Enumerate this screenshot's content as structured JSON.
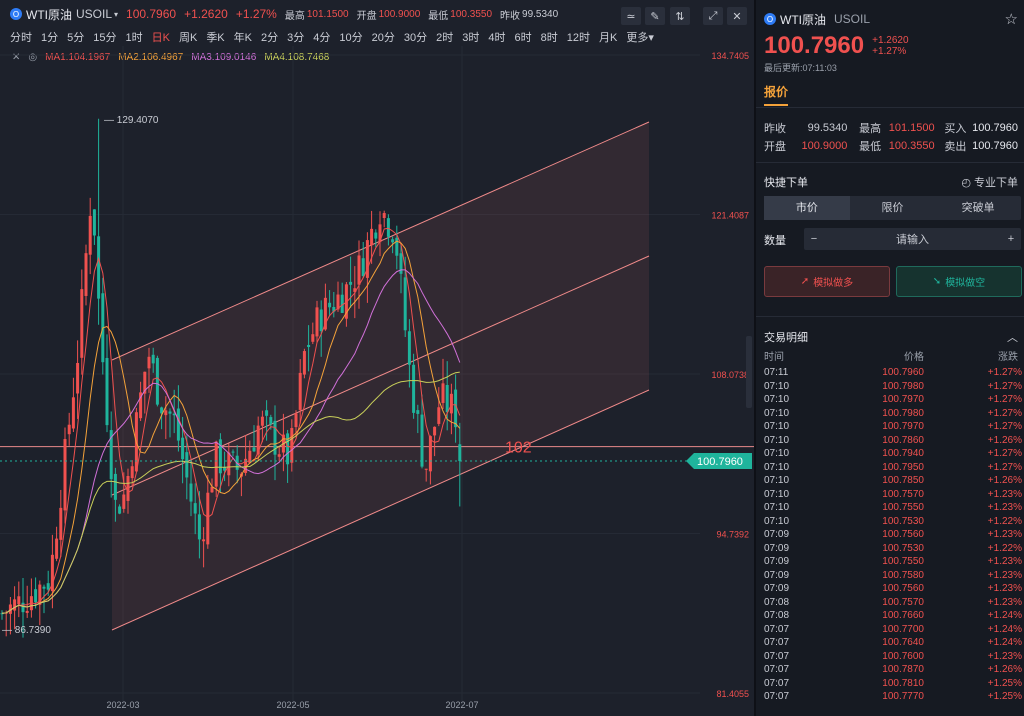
{
  "header": {
    "logo_glyph": "O",
    "symbol_name": "WTI原油",
    "symbol_code": "USOIL",
    "caret": "▾",
    "price": "100.7960",
    "change": "+1.2620",
    "change_pct": "+1.27%",
    "stats": [
      {
        "label": "最高",
        "value": "101.1500"
      },
      {
        "label": "开盘",
        "value": "100.9000"
      },
      {
        "label": "最低",
        "value": "100.3550"
      },
      {
        "label": "昨收",
        "value": "99.5340"
      }
    ],
    "tools": [
      "≃",
      "✎",
      "⇅",
      "⤢",
      "✕"
    ],
    "tool_names": [
      "indicator-icon",
      "draw-icon",
      "compare-icon",
      "fullscreen-icon",
      "close-icon"
    ]
  },
  "intervals": [
    "分时",
    "1分",
    "5分",
    "15分",
    "1时",
    "日K",
    "周K",
    "季K",
    "年K",
    "2分",
    "3分",
    "4分",
    "10分",
    "20分",
    "30分",
    "2时",
    "3时",
    "4时",
    "6时",
    "8时",
    "12时",
    "月K",
    "更多▾"
  ],
  "active_interval": "日K",
  "ma_legend": {
    "close_glyph": "✕",
    "eye_glyph": "◎",
    "items": [
      {
        "text": "MA1:104.1967",
        "color": "#f0514f"
      },
      {
        "text": "MA2:106.4967",
        "color": "#f4a23a"
      },
      {
        "text": "MA3:109.0146",
        "color": "#d070d8"
      },
      {
        "text": "MA4:108.7468",
        "color": "#c9d05a"
      }
    ]
  },
  "chart_data": {
    "type": "candlestick",
    "x_ticks": [
      "2022-03",
      "2022-05",
      "2022-07"
    ],
    "y_ticks": [
      "134.7405",
      "121.4087",
      "108.0738",
      "94.7392",
      "81.4055"
    ],
    "y_range": [
      81.4055,
      134.7405
    ],
    "annotations": [
      {
        "text": "129.4070"
      },
      {
        "text": "86.7390"
      },
      {
        "text": "102"
      }
    ],
    "current_price": "100.7960",
    "horizontal_line": 102,
    "colors": {
      "up": "#f0514f",
      "down": "#1fb49c",
      "ma1": "#f0514f",
      "ma2": "#f4a23a",
      "ma3": "#d070d8",
      "ma4": "#c9d05a",
      "channel": "#f08a8a"
    }
  },
  "right": {
    "symbol_name": "WTI原油",
    "symbol_code": "USOIL",
    "star_icon": "☆",
    "price": "100.7960",
    "change": "+1.2620",
    "change_pct": "+1.27%",
    "update_time": "最后更新:07:11:03",
    "quote_tab": "报价",
    "quote_rows": [
      [
        {
          "label": "昨收",
          "value": "99.5340",
          "color": "#c9ccd4"
        },
        {
          "label": "最高",
          "value": "101.1500",
          "color": "#f0514f"
        },
        {
          "label": "买入",
          "value": "100.7960",
          "color": "#e6e8ee"
        }
      ],
      [
        {
          "label": "开盘",
          "value": "100.9000",
          "color": "#f0514f"
        },
        {
          "label": "最低",
          "value": "100.3550",
          "color": "#f0514f"
        },
        {
          "label": "卖出",
          "value": "100.7960",
          "color": "#e6e8ee"
        }
      ]
    ],
    "quick_order": "快捷下单",
    "pro_order": "专业下单",
    "order_types": [
      "市价",
      "限价",
      "突破单"
    ],
    "qty_label": "数量",
    "qty_minus": "−",
    "qty_placeholder": "请输入",
    "qty_plus": "+",
    "buy_label": "模拟做多",
    "sell_label": "模拟做空",
    "trades_title": "交易明细",
    "trades_collapse": "︿",
    "trades_headers": [
      "时间",
      "价格",
      "涨跌"
    ],
    "trades": [
      [
        "07:11",
        "100.7960",
        "+1.27%"
      ],
      [
        "07:10",
        "100.7980",
        "+1.27%"
      ],
      [
        "07:10",
        "100.7970",
        "+1.27%"
      ],
      [
        "07:10",
        "100.7980",
        "+1.27%"
      ],
      [
        "07:10",
        "100.7970",
        "+1.27%"
      ],
      [
        "07:10",
        "100.7860",
        "+1.26%"
      ],
      [
        "07:10",
        "100.7940",
        "+1.27%"
      ],
      [
        "07:10",
        "100.7950",
        "+1.27%"
      ],
      [
        "07:10",
        "100.7850",
        "+1.26%"
      ],
      [
        "07:10",
        "100.7570",
        "+1.23%"
      ],
      [
        "07:10",
        "100.7550",
        "+1.23%"
      ],
      [
        "07:10",
        "100.7530",
        "+1.22%"
      ],
      [
        "07:09",
        "100.7560",
        "+1.23%"
      ],
      [
        "07:09",
        "100.7530",
        "+1.22%"
      ],
      [
        "07:09",
        "100.7550",
        "+1.23%"
      ],
      [
        "07:09",
        "100.7580",
        "+1.23%"
      ],
      [
        "07:09",
        "100.7560",
        "+1.23%"
      ],
      [
        "07:08",
        "100.7570",
        "+1.23%"
      ],
      [
        "07:08",
        "100.7660",
        "+1.24%"
      ],
      [
        "07:07",
        "100.7700",
        "+1.24%"
      ],
      [
        "07:07",
        "100.7640",
        "+1.24%"
      ],
      [
        "07:07",
        "100.7600",
        "+1.23%"
      ],
      [
        "07:07",
        "100.7870",
        "+1.26%"
      ],
      [
        "07:07",
        "100.7810",
        "+1.25%"
      ],
      [
        "07:07",
        "100.7770",
        "+1.25%"
      ]
    ]
  }
}
